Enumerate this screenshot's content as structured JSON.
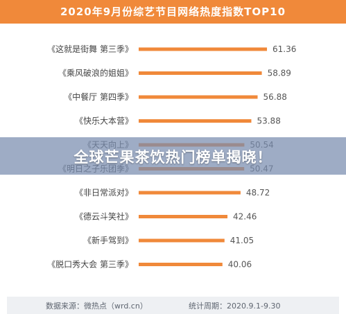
{
  "header": {
    "title": "2020年9月份综艺节目网络热度指数TOP10"
  },
  "banner": {
    "text": "全球芒果茶饮热门榜单揭晓！"
  },
  "footer": {
    "source": "数据来源：微热点（wrd.cn）",
    "period": "统计周期：2020.9.1-9.30"
  },
  "colors": {
    "accent": "#f0893a",
    "label": "#444444",
    "value": "#555555"
  },
  "chart_data": {
    "type": "bar",
    "orientation": "horizontal",
    "title": "2020年9月份综艺节目网络热度指数TOP10",
    "categories": [
      "《这就是街舞 第三季》",
      "《乘风破浪的姐姐》",
      "《中餐厅 第四季》",
      "《快乐大本营》",
      "《天天向上》",
      "《明日之子乐团季》",
      "《非日常派对》",
      "《德云斗笑社》",
      "《新手驾到》",
      "《脱口秀大会 第三季》"
    ],
    "values": [
      61.36,
      58.89,
      56.88,
      53.88,
      50.54,
      50.47,
      48.72,
      42.46,
      41.05,
      40.06
    ],
    "value_labels": [
      "61.36",
      "58.89",
      "56.88",
      "53.88",
      "50.54",
      "50.47",
      "48.72",
      "42.46",
      "41.05",
      "40.06"
    ],
    "xlim": [
      0,
      65
    ],
    "grid": false
  }
}
